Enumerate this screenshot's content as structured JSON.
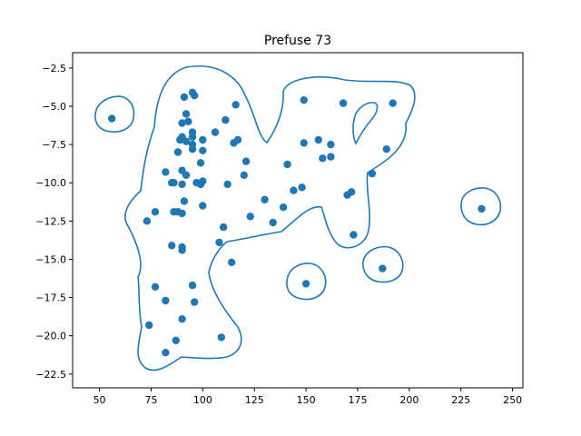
{
  "chart_data": {
    "type": "scatter",
    "title": "Prefuse 73",
    "xlabel": "",
    "ylabel": "",
    "xlim": [
      37,
      255
    ],
    "ylim": [
      -23.4,
      -1.5
    ],
    "x_ticks": [
      50,
      75,
      100,
      125,
      150,
      175,
      200,
      225,
      250
    ],
    "y_ticks": [
      -2.5,
      -5.0,
      -7.5,
      -10.0,
      -12.5,
      -15.0,
      -17.5,
      -20.0,
      -22.5
    ],
    "x_tick_labels": [
      "50",
      "75",
      "100",
      "125",
      "150",
      "175",
      "200",
      "225",
      "250"
    ],
    "y_tick_labels": [
      "−2.5",
      "−5.0",
      "−7.5",
      "−10.0",
      "−12.5",
      "−15.0",
      "−17.5",
      "−20.0",
      "−22.5"
    ],
    "grid": false,
    "point_color": "#1f77b4",
    "contour_color": "#1f77b4",
    "series": [
      {
        "x": [
          56,
          91,
          95,
          96,
          116,
          111,
          106,
          90,
          92,
          93,
          95,
          95,
          90,
          89,
          100,
          95,
          117,
          115,
          92,
          95,
          100,
          88,
          99,
          97,
          100,
          121,
          82,
          90,
          92,
          86,
          90,
          85,
          112,
          99,
          100,
          120,
          91,
          149,
          168,
          192,
          149,
          156,
          162,
          158,
          162,
          189,
          141,
          182,
          144,
          148,
          172,
          170,
          130,
          139,
          123,
          73,
          77,
          90,
          88,
          86,
          110,
          134,
          173,
          85,
          90,
          90,
          108,
          114,
          235,
          187,
          150,
          77,
          95,
          82,
          96,
          74,
          90,
          109,
          87,
          82
        ],
        "y": [
          -5.8,
          -4.4,
          -4.1,
          -4.3,
          -4.9,
          -5.9,
          -6.7,
          -6.1,
          -5.5,
          -6.0,
          -6.7,
          -7.0,
          -7.0,
          -7.2,
          -7.2,
          -7.5,
          -7.2,
          -7.4,
          -7.3,
          -7.8,
          -7.9,
          -8.0,
          -8.7,
          -10.0,
          -9.9,
          -8.6,
          -9.3,
          -9.2,
          -9.5,
          -10.0,
          -10.1,
          -10.0,
          -10.1,
          -10.1,
          -11.5,
          -9.5,
          -11.2,
          -4.6,
          -4.8,
          -4.8,
          -7.4,
          -7.2,
          -7.5,
          -8.4,
          -8.3,
          -7.8,
          -8.8,
          -9.4,
          -10.5,
          -10.3,
          -10.6,
          -10.8,
          -11.1,
          -11.6,
          -12.2,
          -12.5,
          -11.9,
          -12.0,
          -11.9,
          -11.9,
          -12.9,
          -12.6,
          -13.4,
          -14.1,
          -14.2,
          -14.4,
          -13.9,
          -15.2,
          -11.7,
          -15.6,
          -16.6,
          -16.8,
          -16.7,
          -17.7,
          -17.8,
          -19.3,
          -18.9,
          -20.1,
          -20.3,
          -21.1
        ]
      }
    ]
  }
}
